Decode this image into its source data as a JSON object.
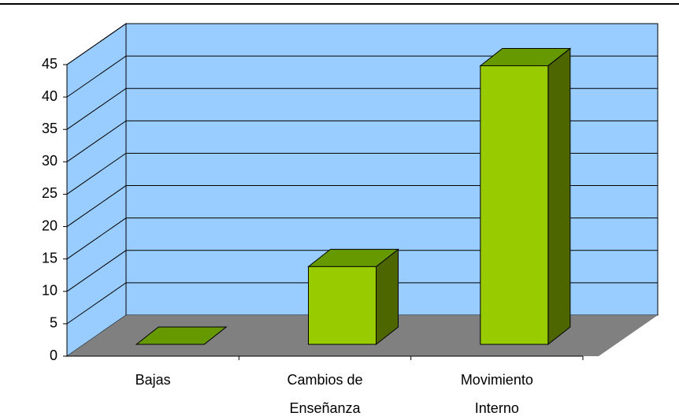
{
  "chart_data": {
    "type": "bar3d",
    "categories": [
      "Bajas",
      "Cambios de Enseñanza",
      "Movimiento Interno"
    ],
    "values": [
      0,
      12,
      43
    ],
    "ylim": [
      0,
      45
    ],
    "yticks": [
      0,
      5,
      10,
      15,
      20,
      25,
      30,
      35,
      40,
      45
    ],
    "grid": true,
    "wall_color": "#99ccff",
    "floor_color": "#808080",
    "color": "#99cc00",
    "top_color": "#669900",
    "side_color": "#4d6600"
  }
}
